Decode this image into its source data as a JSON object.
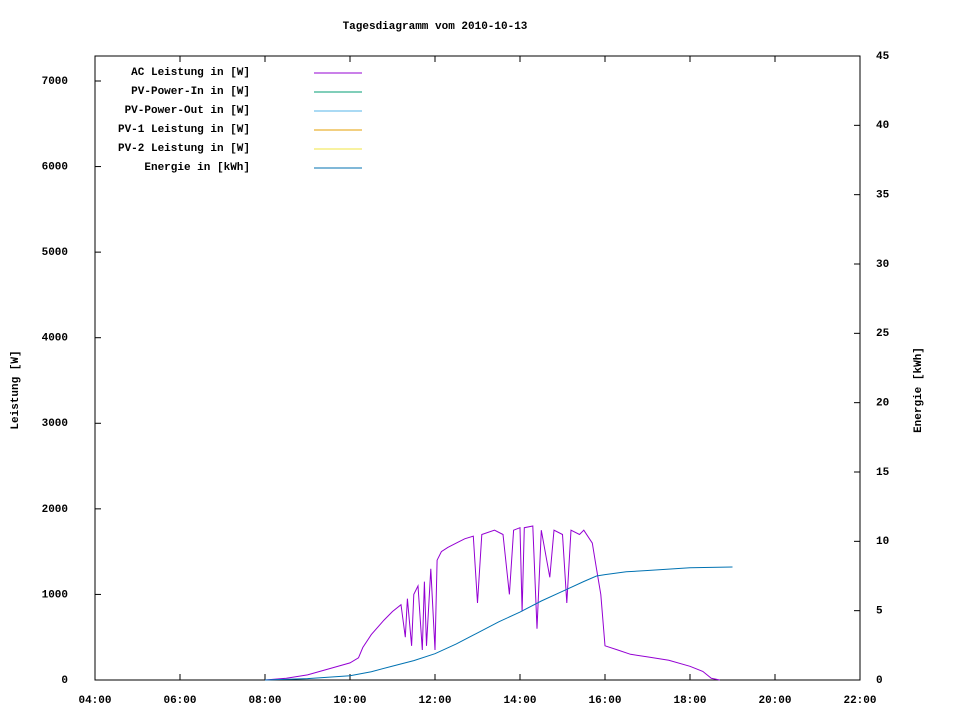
{
  "chart_data": {
    "type": "line",
    "title": "Tagesdiagramm vom 2010-10-13",
    "y_label": "Leistung [W]",
    "y2_label": "Energie [kWh]",
    "xlim": [
      4,
      22
    ],
    "xticks": [
      {
        "value": 4,
        "label": "04:00"
      },
      {
        "value": 6,
        "label": "06:00"
      },
      {
        "value": 8,
        "label": "08:00"
      },
      {
        "value": 10,
        "label": "10:00"
      },
      {
        "value": 12,
        "label": "12:00"
      },
      {
        "value": 14,
        "label": "14:00"
      },
      {
        "value": 16,
        "label": "16:00"
      },
      {
        "value": 18,
        "label": "18:00"
      },
      {
        "value": 20,
        "label": "20:00"
      },
      {
        "value": 22,
        "label": "22:00"
      }
    ],
    "ylim": [
      0,
      7292
    ],
    "yticks": [
      0,
      1000,
      2000,
      3000,
      4000,
      5000,
      6000,
      7000
    ],
    "y2lim": [
      0,
      45
    ],
    "y2ticks": [
      0,
      5,
      10,
      15,
      20,
      25,
      30,
      35,
      40,
      45
    ],
    "legend": "top-left",
    "series": [
      {
        "name": "AC Leistung in [W]",
        "color": "#9400d3",
        "x": [
          8.0,
          8.5,
          9.0,
          9.5,
          10.0,
          10.2,
          10.3,
          10.5,
          10.8,
          11.0,
          11.2,
          11.3,
          11.35,
          11.45,
          11.5,
          11.6,
          11.7,
          11.75,
          11.8,
          11.9,
          12.0,
          12.05,
          12.15,
          12.3,
          12.5,
          12.7,
          12.9,
          13.0,
          13.1,
          13.4,
          13.6,
          13.75,
          13.85,
          14.0,
          14.05,
          14.1,
          14.3,
          14.4,
          14.5,
          14.7,
          14.8,
          15.0,
          15.1,
          15.2,
          15.4,
          15.5,
          15.7,
          15.8,
          15.9,
          16.0,
          16.3,
          16.6,
          17.0,
          17.5,
          18.0,
          18.3,
          18.5,
          18.7
        ],
        "values": [
          0,
          20,
          60,
          130,
          200,
          260,
          380,
          530,
          700,
          800,
          880,
          500,
          950,
          400,
          1000,
          1100,
          350,
          1150,
          400,
          1300,
          350,
          1400,
          1500,
          1550,
          1600,
          1650,
          1680,
          900,
          1700,
          1750,
          1700,
          1000,
          1750,
          1780,
          800,
          1780,
          1800,
          600,
          1750,
          1200,
          1750,
          1700,
          900,
          1750,
          1700,
          1750,
          1600,
          1300,
          1000,
          400,
          350,
          300,
          270,
          230,
          160,
          100,
          20,
          0
        ]
      },
      {
        "name": "PV-Power-In in [W]",
        "color": "#009e73",
        "x": [],
        "values": []
      },
      {
        "name": "PV-Power-Out in [W]",
        "color": "#56b4e9",
        "x": [],
        "values": []
      },
      {
        "name": "PV-1 Leistung in [W]",
        "color": "#e69f00",
        "x": [],
        "values": []
      },
      {
        "name": "PV-2 Leistung in [W]",
        "color": "#f0e442",
        "x": [],
        "values": []
      },
      {
        "name": "Energie in [kWh]",
        "color": "#0072b2",
        "axis": "y2",
        "x": [
          8.0,
          9.0,
          10.0,
          10.5,
          11.0,
          11.5,
          12.0,
          12.5,
          13.0,
          13.5,
          14.0,
          14.5,
          15.0,
          15.5,
          15.8,
          16.0,
          16.5,
          17.0,
          18.0,
          19.0
        ],
        "values": [
          0,
          0.1,
          0.3,
          0.6,
          1.0,
          1.4,
          1.9,
          2.6,
          3.4,
          4.2,
          4.9,
          5.7,
          6.4,
          7.1,
          7.5,
          7.6,
          7.8,
          7.9,
          8.1,
          8.15
        ]
      }
    ]
  }
}
